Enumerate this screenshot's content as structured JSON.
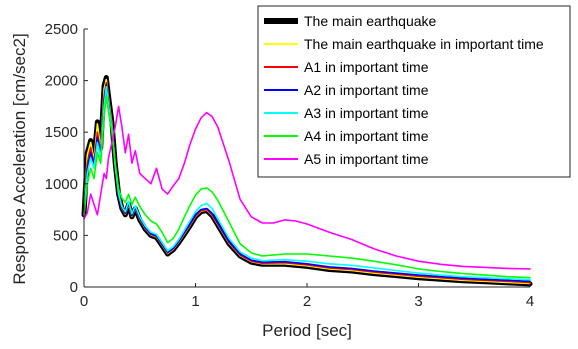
{
  "chart_data": {
    "type": "line",
    "title": "",
    "xlabel": "Period [sec]",
    "ylabel": "Response Acceleration [cm/sec2]",
    "xlim": [
      0,
      4
    ],
    "ylim": [
      0,
      2500
    ],
    "xticks": [
      0,
      1,
      2,
      3,
      4
    ],
    "yticks": [
      0,
      500,
      1000,
      1500,
      2000,
      2500
    ],
    "grid": false,
    "legend_position": "top-right",
    "series": [
      {
        "name": "The main earthquake",
        "color": "#000000",
        "linewidth": "thick",
        "x": [
          0,
          0.03,
          0.06,
          0.09,
          0.12,
          0.15,
          0.18,
          0.2,
          0.22,
          0.25,
          0.28,
          0.31,
          0.34,
          0.37,
          0.4,
          0.43,
          0.46,
          0.5,
          0.55,
          0.6,
          0.65,
          0.7,
          0.75,
          0.8,
          0.85,
          0.9,
          0.95,
          1.0,
          1.05,
          1.1,
          1.15,
          1.2,
          1.3,
          1.4,
          1.5,
          1.6,
          1.8,
          2.0,
          2.2,
          2.4,
          2.6,
          2.8,
          3.0,
          3.2,
          3.4,
          3.6,
          3.8,
          4.0
        ],
        "y": [
          700,
          1300,
          1420,
          1250,
          1600,
          1350,
          1950,
          2030,
          1850,
          1600,
          1200,
          900,
          760,
          700,
          800,
          680,
          760,
          650,
          560,
          500,
          480,
          400,
          320,
          360,
          430,
          510,
          590,
          680,
          730,
          740,
          690,
          600,
          420,
          300,
          240,
          220,
          220,
          200,
          170,
          155,
          130,
          110,
          90,
          75,
          60,
          50,
          40,
          30
        ]
      },
      {
        "name": "The main earthquake in important time",
        "color": "#ffff00",
        "x": [
          0,
          0.03,
          0.06,
          0.09,
          0.12,
          0.15,
          0.18,
          0.2,
          0.22,
          0.25,
          0.28,
          0.31,
          0.34,
          0.37,
          0.4,
          0.43,
          0.46,
          0.5,
          0.55,
          0.6,
          0.65,
          0.7,
          0.75,
          0.8,
          0.85,
          0.9,
          0.95,
          1.0,
          1.05,
          1.1,
          1.15,
          1.2,
          1.3,
          1.4,
          1.5,
          1.6,
          1.8,
          2.0,
          2.2,
          2.4,
          2.6,
          2.8,
          3.0,
          3.2,
          3.4,
          3.6,
          3.8,
          4.0
        ],
        "y": [
          700,
          1280,
          1400,
          1230,
          1580,
          1340,
          1920,
          2010,
          1830,
          1580,
          1190,
          900,
          760,
          705,
          800,
          685,
          760,
          655,
          565,
          505,
          485,
          405,
          325,
          365,
          435,
          515,
          595,
          685,
          735,
          745,
          695,
          605,
          425,
          305,
          245,
          225,
          225,
          205,
          175,
          160,
          135,
          115,
          95,
          80,
          65,
          55,
          45,
          35
        ]
      },
      {
        "name": "A1  in important time",
        "color": "#ff0000",
        "x": [
          0,
          0.03,
          0.06,
          0.09,
          0.12,
          0.15,
          0.18,
          0.2,
          0.22,
          0.25,
          0.28,
          0.31,
          0.34,
          0.37,
          0.4,
          0.43,
          0.46,
          0.5,
          0.55,
          0.6,
          0.65,
          0.7,
          0.75,
          0.8,
          0.85,
          0.9,
          0.95,
          1.0,
          1.05,
          1.1,
          1.15,
          1.2,
          1.3,
          1.4,
          1.5,
          1.6,
          1.8,
          2.0,
          2.2,
          2.4,
          2.6,
          2.8,
          3.0,
          3.2,
          3.4,
          3.6,
          3.8,
          4.0
        ],
        "y": [
          700,
          1200,
          1350,
          1200,
          1500,
          1300,
          1850,
          1980,
          1800,
          1550,
          1180,
          890,
          760,
          710,
          810,
          690,
          765,
          660,
          570,
          510,
          490,
          410,
          330,
          370,
          440,
          520,
          600,
          690,
          740,
          750,
          700,
          610,
          430,
          310,
          250,
          230,
          235,
          215,
          185,
          170,
          145,
          125,
          105,
          90,
          75,
          65,
          55,
          45
        ]
      },
      {
        "name": "A2  in important time",
        "color": "#0000ff",
        "x": [
          0,
          0.03,
          0.06,
          0.09,
          0.12,
          0.15,
          0.18,
          0.2,
          0.22,
          0.25,
          0.28,
          0.31,
          0.34,
          0.37,
          0.4,
          0.43,
          0.46,
          0.5,
          0.55,
          0.6,
          0.65,
          0.7,
          0.75,
          0.8,
          0.85,
          0.9,
          0.95,
          1.0,
          1.05,
          1.1,
          1.15,
          1.2,
          1.3,
          1.4,
          1.5,
          1.6,
          1.8,
          2.0,
          2.2,
          2.4,
          2.6,
          2.8,
          3.0,
          3.2,
          3.4,
          3.6,
          3.8,
          4.0
        ],
        "y": [
          700,
          1150,
          1300,
          1180,
          1450,
          1280,
          1800,
          1960,
          1780,
          1540,
          1170,
          890,
          770,
          715,
          815,
          695,
          770,
          665,
          575,
          515,
          495,
          415,
          335,
          375,
          445,
          530,
          610,
          700,
          750,
          760,
          710,
          620,
          440,
          320,
          260,
          240,
          245,
          225,
          195,
          180,
          155,
          135,
          115,
          100,
          85,
          75,
          65,
          55
        ]
      },
      {
        "name": "A3  in important time",
        "color": "#00ffff",
        "x": [
          0,
          0.03,
          0.06,
          0.09,
          0.12,
          0.15,
          0.18,
          0.2,
          0.22,
          0.25,
          0.28,
          0.31,
          0.34,
          0.37,
          0.4,
          0.43,
          0.46,
          0.5,
          0.55,
          0.6,
          0.65,
          0.7,
          0.75,
          0.8,
          0.85,
          0.9,
          0.95,
          1.0,
          1.05,
          1.1,
          1.15,
          1.2,
          1.3,
          1.4,
          1.5,
          1.6,
          1.8,
          2.0,
          2.2,
          2.4,
          2.6,
          2.8,
          3.0,
          3.2,
          3.4,
          3.6,
          3.8,
          4.0
        ],
        "y": [
          700,
          1100,
          1250,
          1150,
          1400,
          1250,
          1750,
          1940,
          1760,
          1530,
          1170,
          900,
          780,
          730,
          830,
          710,
          785,
          680,
          590,
          530,
          510,
          430,
          350,
          390,
          460,
          550,
          640,
          730,
          790,
          810,
          760,
          660,
          470,
          340,
          280,
          255,
          265,
          250,
          225,
          210,
          185,
          160,
          135,
          115,
          100,
          90,
          80,
          70
        ]
      },
      {
        "name": "A4  in important time",
        "color": "#00ff00",
        "x": [
          0,
          0.03,
          0.06,
          0.09,
          0.12,
          0.15,
          0.18,
          0.2,
          0.22,
          0.25,
          0.28,
          0.31,
          0.34,
          0.37,
          0.4,
          0.43,
          0.46,
          0.5,
          0.55,
          0.6,
          0.65,
          0.7,
          0.75,
          0.8,
          0.85,
          0.9,
          0.95,
          1.0,
          1.05,
          1.1,
          1.15,
          1.2,
          1.3,
          1.4,
          1.5,
          1.6,
          1.8,
          2.0,
          2.2,
          2.4,
          2.6,
          2.8,
          3.0,
          3.2,
          3.4,
          3.6,
          3.8,
          4.0
        ],
        "y": [
          700,
          1000,
          1150,
          1050,
          1300,
          1200,
          1650,
          1850,
          1700,
          1500,
          1200,
          950,
          860,
          820,
          900,
          800,
          870,
          780,
          700,
          640,
          610,
          530,
          430,
          470,
          560,
          680,
          790,
          890,
          950,
          960,
          920,
          840,
          630,
          420,
          330,
          300,
          320,
          320,
          300,
          280,
          250,
          215,
          175,
          150,
          130,
          115,
          100,
          90
        ]
      },
      {
        "name": "A5  in important time",
        "color": "#ff00ff",
        "x": [
          0,
          0.03,
          0.06,
          0.09,
          0.12,
          0.15,
          0.18,
          0.2,
          0.22,
          0.25,
          0.28,
          0.31,
          0.34,
          0.37,
          0.4,
          0.43,
          0.46,
          0.5,
          0.55,
          0.6,
          0.65,
          0.7,
          0.75,
          0.8,
          0.85,
          0.9,
          0.95,
          1.0,
          1.05,
          1.1,
          1.15,
          1.2,
          1.3,
          1.4,
          1.5,
          1.6,
          1.7,
          1.8,
          1.9,
          2.0,
          2.2,
          2.4,
          2.6,
          2.8,
          3.0,
          3.2,
          3.4,
          3.6,
          3.8,
          4.0
        ],
        "y": [
          660,
          720,
          900,
          800,
          700,
          900,
          1100,
          1050,
          1250,
          1400,
          1550,
          1750,
          1550,
          1300,
          1480,
          1200,
          1320,
          1100,
          1050,
          1000,
          1150,
          950,
          900,
          980,
          1050,
          1200,
          1380,
          1530,
          1640,
          1690,
          1650,
          1550,
          1220,
          850,
          680,
          620,
          620,
          650,
          640,
          610,
          530,
          460,
          370,
          300,
          250,
          220,
          200,
          190,
          180,
          175
        ]
      }
    ]
  }
}
